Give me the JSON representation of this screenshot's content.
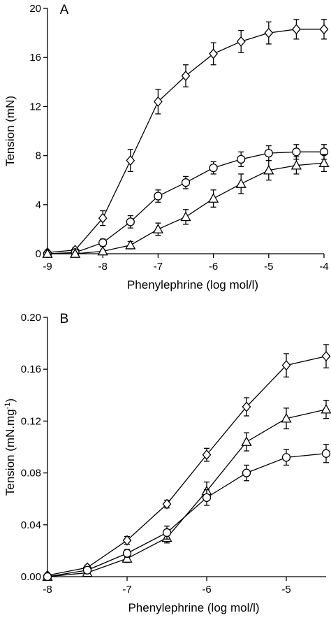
{
  "chart_data": [
    {
      "type": "line",
      "panel_label": "A",
      "xlabel": "Phenylephrine (log mol/l)",
      "ylabel": "Tension (mN)",
      "xlim": [
        -9,
        -4
      ],
      "ylim": [
        0,
        20
      ],
      "xticks": [
        -9,
        -8,
        -7,
        -6,
        -5,
        -4
      ],
      "yticks": [
        0,
        4,
        8,
        12,
        16,
        20
      ],
      "xtick_labels": [
        "-9",
        "-8",
        "-7",
        "-6",
        "-5",
        "-4"
      ],
      "ytick_labels": [
        "0",
        "4",
        "8",
        "12",
        "16",
        "20"
      ],
      "grid": false,
      "x": [
        -9,
        -8.5,
        -8,
        -7.5,
        -7,
        -6.5,
        -6,
        -5.5,
        -5,
        -4.5,
        -4
      ],
      "series": [
        {
          "marker": "diamond",
          "values": [
            0.1,
            0.3,
            2.9,
            7.6,
            12.4,
            14.5,
            16.3,
            17.3,
            18.0,
            18.3,
            18.3
          ],
          "errors": [
            0.2,
            0.2,
            0.6,
            0.9,
            1.0,
            0.9,
            0.9,
            0.9,
            0.9,
            0.8,
            0.8
          ]
        },
        {
          "marker": "circle",
          "values": [
            0.0,
            0.1,
            0.9,
            2.6,
            4.7,
            5.8,
            7.0,
            7.7,
            8.2,
            8.3,
            8.3
          ],
          "errors": [
            0.1,
            0.1,
            0.3,
            0.5,
            0.5,
            0.5,
            0.5,
            0.6,
            0.6,
            0.6,
            0.6
          ]
        },
        {
          "marker": "triangle",
          "values": [
            0.0,
            0.0,
            0.2,
            0.7,
            2.0,
            3.0,
            4.5,
            5.7,
            6.8,
            7.2,
            7.4
          ],
          "errors": [
            0.1,
            0.1,
            0.1,
            0.3,
            0.5,
            0.6,
            0.7,
            0.8,
            0.8,
            0.7,
            0.7
          ]
        }
      ]
    },
    {
      "type": "line",
      "panel_label": "B",
      "xlabel": "Phenylephrine (log mol/l)",
      "ylabel": "Tension (mN.mg",
      "ylabel_superscript": "-1",
      "ylabel_suffix": ")",
      "xlim": [
        -8,
        -4.5
      ],
      "ylim": [
        0,
        0.2
      ],
      "xticks": [
        -8,
        -7,
        -6,
        -5
      ],
      "yticks": [
        0,
        0.04,
        0.08,
        0.12,
        0.16,
        0.2
      ],
      "xtick_labels": [
        "-8",
        "-7",
        "-6",
        "-5"
      ],
      "ytick_labels": [
        "0.00",
        "0.04",
        "0.08",
        "0.12",
        "0.16",
        "0.20"
      ],
      "grid": false,
      "x": [
        -8,
        -7.5,
        -7,
        -6.5,
        -6,
        -5.5,
        -5,
        -4.5
      ],
      "series": [
        {
          "marker": "diamond",
          "values": [
            0.001,
            0.007,
            0.028,
            0.056,
            0.094,
            0.131,
            0.163,
            0.17
          ],
          "errors": [
            0.001,
            0.002,
            0.003,
            0.003,
            0.005,
            0.007,
            0.009,
            0.009
          ]
        },
        {
          "marker": "triangle",
          "values": [
            0.0,
            0.003,
            0.014,
            0.03,
            0.066,
            0.104,
            0.122,
            0.129
          ],
          "errors": [
            0.001,
            0.001,
            0.003,
            0.004,
            0.007,
            0.007,
            0.008,
            0.007
          ]
        },
        {
          "marker": "circle",
          "values": [
            0.0,
            0.005,
            0.018,
            0.034,
            0.061,
            0.08,
            0.092,
            0.095
          ],
          "errors": [
            0.001,
            0.001,
            0.003,
            0.005,
            0.006,
            0.006,
            0.006,
            0.007
          ]
        }
      ]
    }
  ]
}
